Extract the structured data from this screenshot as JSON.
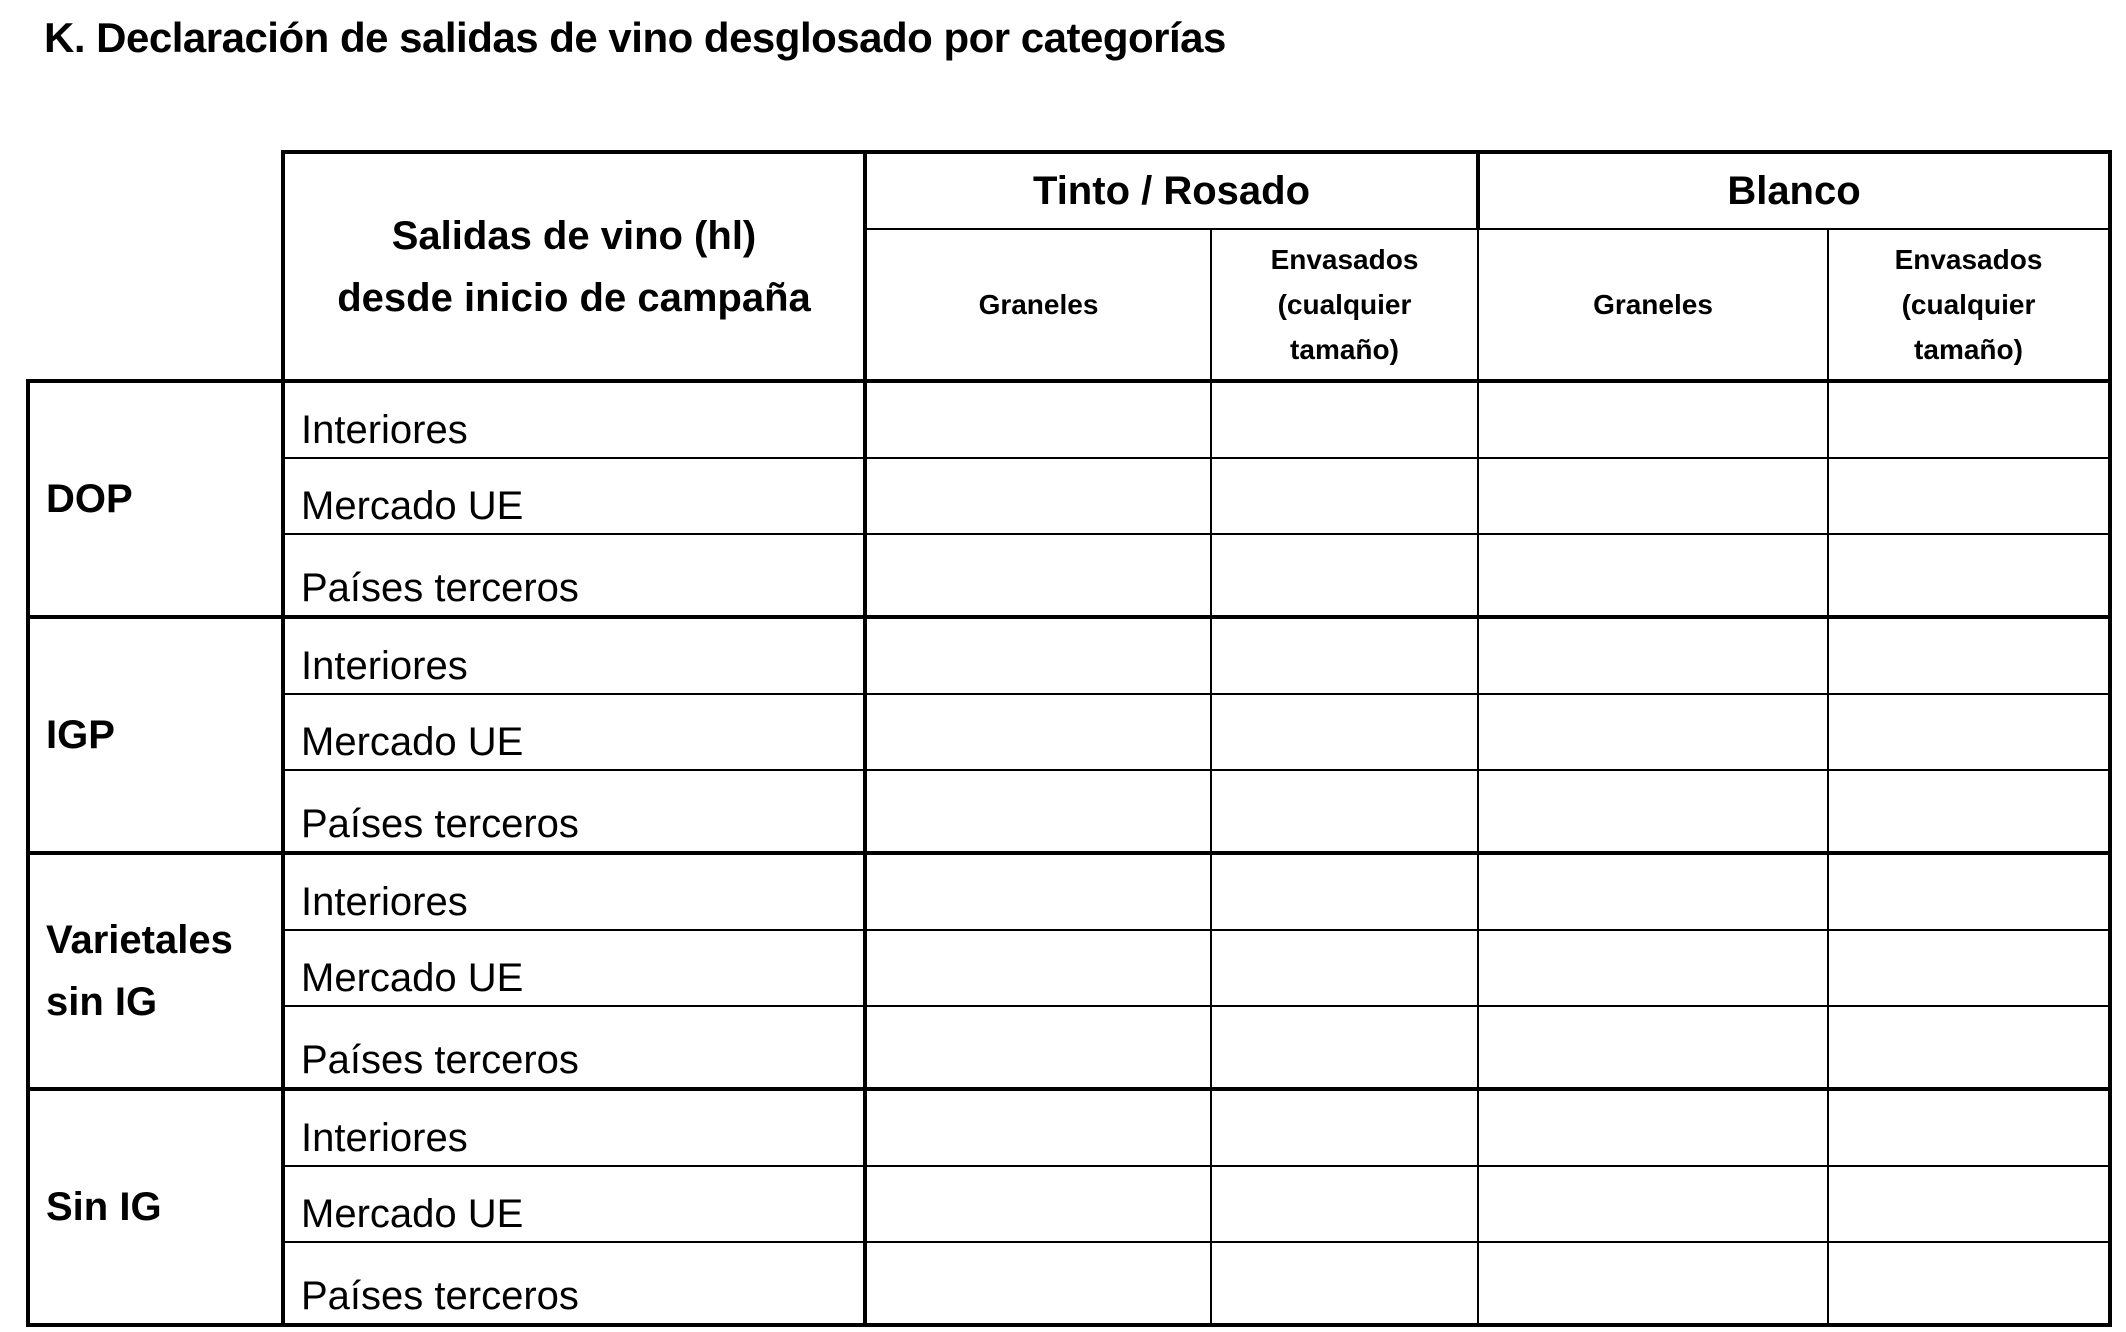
{
  "title": "K. Declaración de salidas de vino desglosado por categorías",
  "table": {
    "header_main": [
      "Salidas de vino (hl)",
      "desde inicio de campaña"
    ],
    "groups": [
      "Tinto / Rosado",
      "Blanco"
    ],
    "subheaders": {
      "graneles": "Graneles",
      "envasados": [
        "Envasados",
        "(cualquier",
        "tamaño)"
      ]
    },
    "categories": [
      {
        "label": [
          "DOP"
        ],
        "rows": [
          "Interiores",
          "Mercado UE",
          "Países terceros"
        ]
      },
      {
        "label": [
          "IGP"
        ],
        "rows": [
          "Interiores",
          "Mercado UE",
          "Países terceros"
        ]
      },
      {
        "label": [
          "Varietales",
          "sin IG"
        ],
        "rows": [
          "Interiores",
          "Mercado UE",
          "Países terceros"
        ]
      },
      {
        "label": [
          "Sin IG"
        ],
        "rows": [
          "Interiores",
          "Mercado UE",
          "Países terceros"
        ]
      }
    ]
  }
}
